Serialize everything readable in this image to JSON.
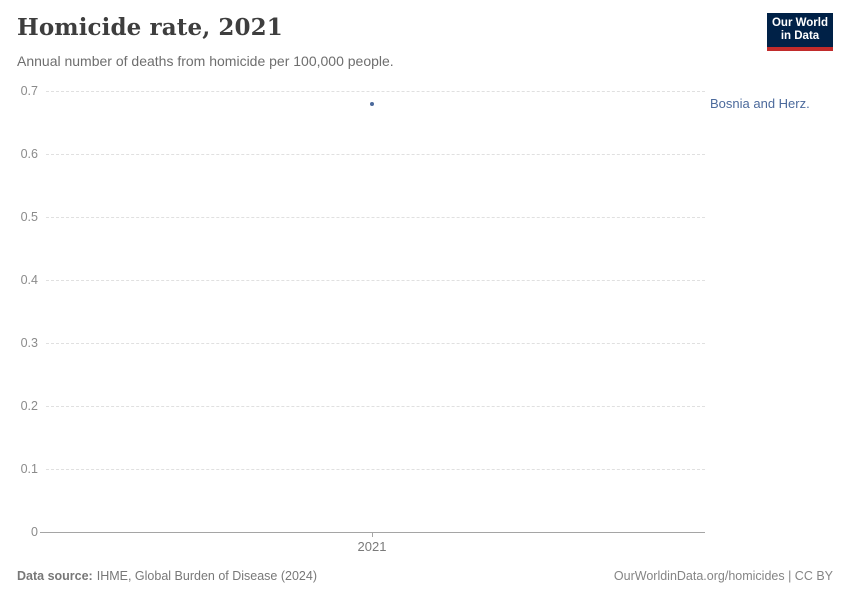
{
  "header": {
    "title": "Homicide rate, 2021",
    "subtitle": "Annual number of deaths from homicide per 100,000 people.",
    "logo": {
      "line1": "Our World",
      "line2": "in Data"
    }
  },
  "chart_data": {
    "type": "scatter",
    "title": "Homicide rate, 2021",
    "xlabel": "",
    "ylabel": "Annual number of deaths from homicide per 100,000 people",
    "ylim": [
      0,
      0.7
    ],
    "yticks": [
      0,
      0.1,
      0.2,
      0.3,
      0.4,
      0.5,
      0.6,
      0.7
    ],
    "xticks": [
      "2021"
    ],
    "grid": "horizontal-dashed",
    "legend_position": "right-inline-label",
    "series": [
      {
        "name": "Bosnia and Herz.",
        "x": [
          2021
        ],
        "values": [
          0.68
        ],
        "color": "#4c6a9c"
      }
    ]
  },
  "colors": {
    "accent_blue": "#4c6a9c",
    "logo_bg": "#002147",
    "logo_accent": "#c12b2b",
    "gridline": "#e0e0e0",
    "axis_line": "#a5a5a5",
    "tick_text": "#8b8b8b"
  },
  "footer": {
    "datasource_label": "Data source:",
    "datasource_value": "IHME, Global Burden of Disease (2024)",
    "credit": "OurWorldinData.org/homicides | CC BY"
  }
}
